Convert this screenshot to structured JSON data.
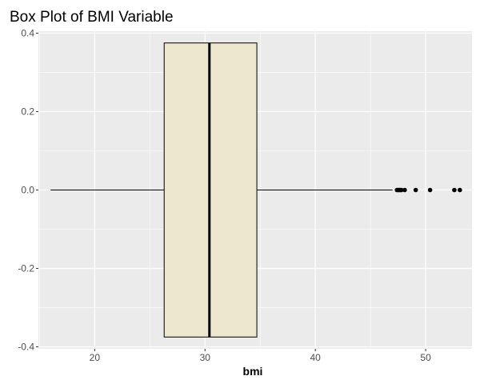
{
  "chart_data": {
    "type": "box",
    "title": "Box Plot of BMI Variable",
    "xlabel": "bmi",
    "ylabel": "",
    "xlim": [
      14.9,
      54.2
    ],
    "ylim": [
      -0.405,
      0.405
    ],
    "x_ticks": [
      20,
      30,
      40,
      50
    ],
    "x_tick_labels": [
      "20",
      "30",
      "40",
      "50"
    ],
    "y_ticks": [
      -0.4,
      -0.2,
      0.0,
      0.2,
      0.4
    ],
    "y_tick_labels": [
      "-0.4",
      "-0.2",
      "0.0",
      "0.2",
      "0.4"
    ],
    "grid": true,
    "box": {
      "whisker_low": 16.0,
      "q1": 26.3,
      "median": 30.4,
      "q3": 34.7,
      "whisker_high": 47.0,
      "box_ymin": -0.375,
      "box_ymax": 0.375,
      "outliers": [
        47.4,
        47.5,
        47.6,
        47.7,
        47.8,
        48.1,
        49.1,
        50.4,
        52.6,
        53.1
      ],
      "fill": "#ede8cd",
      "stroke": "#000000"
    },
    "panel_background": "#ebebeb",
    "grid_color": "#ffffff"
  }
}
